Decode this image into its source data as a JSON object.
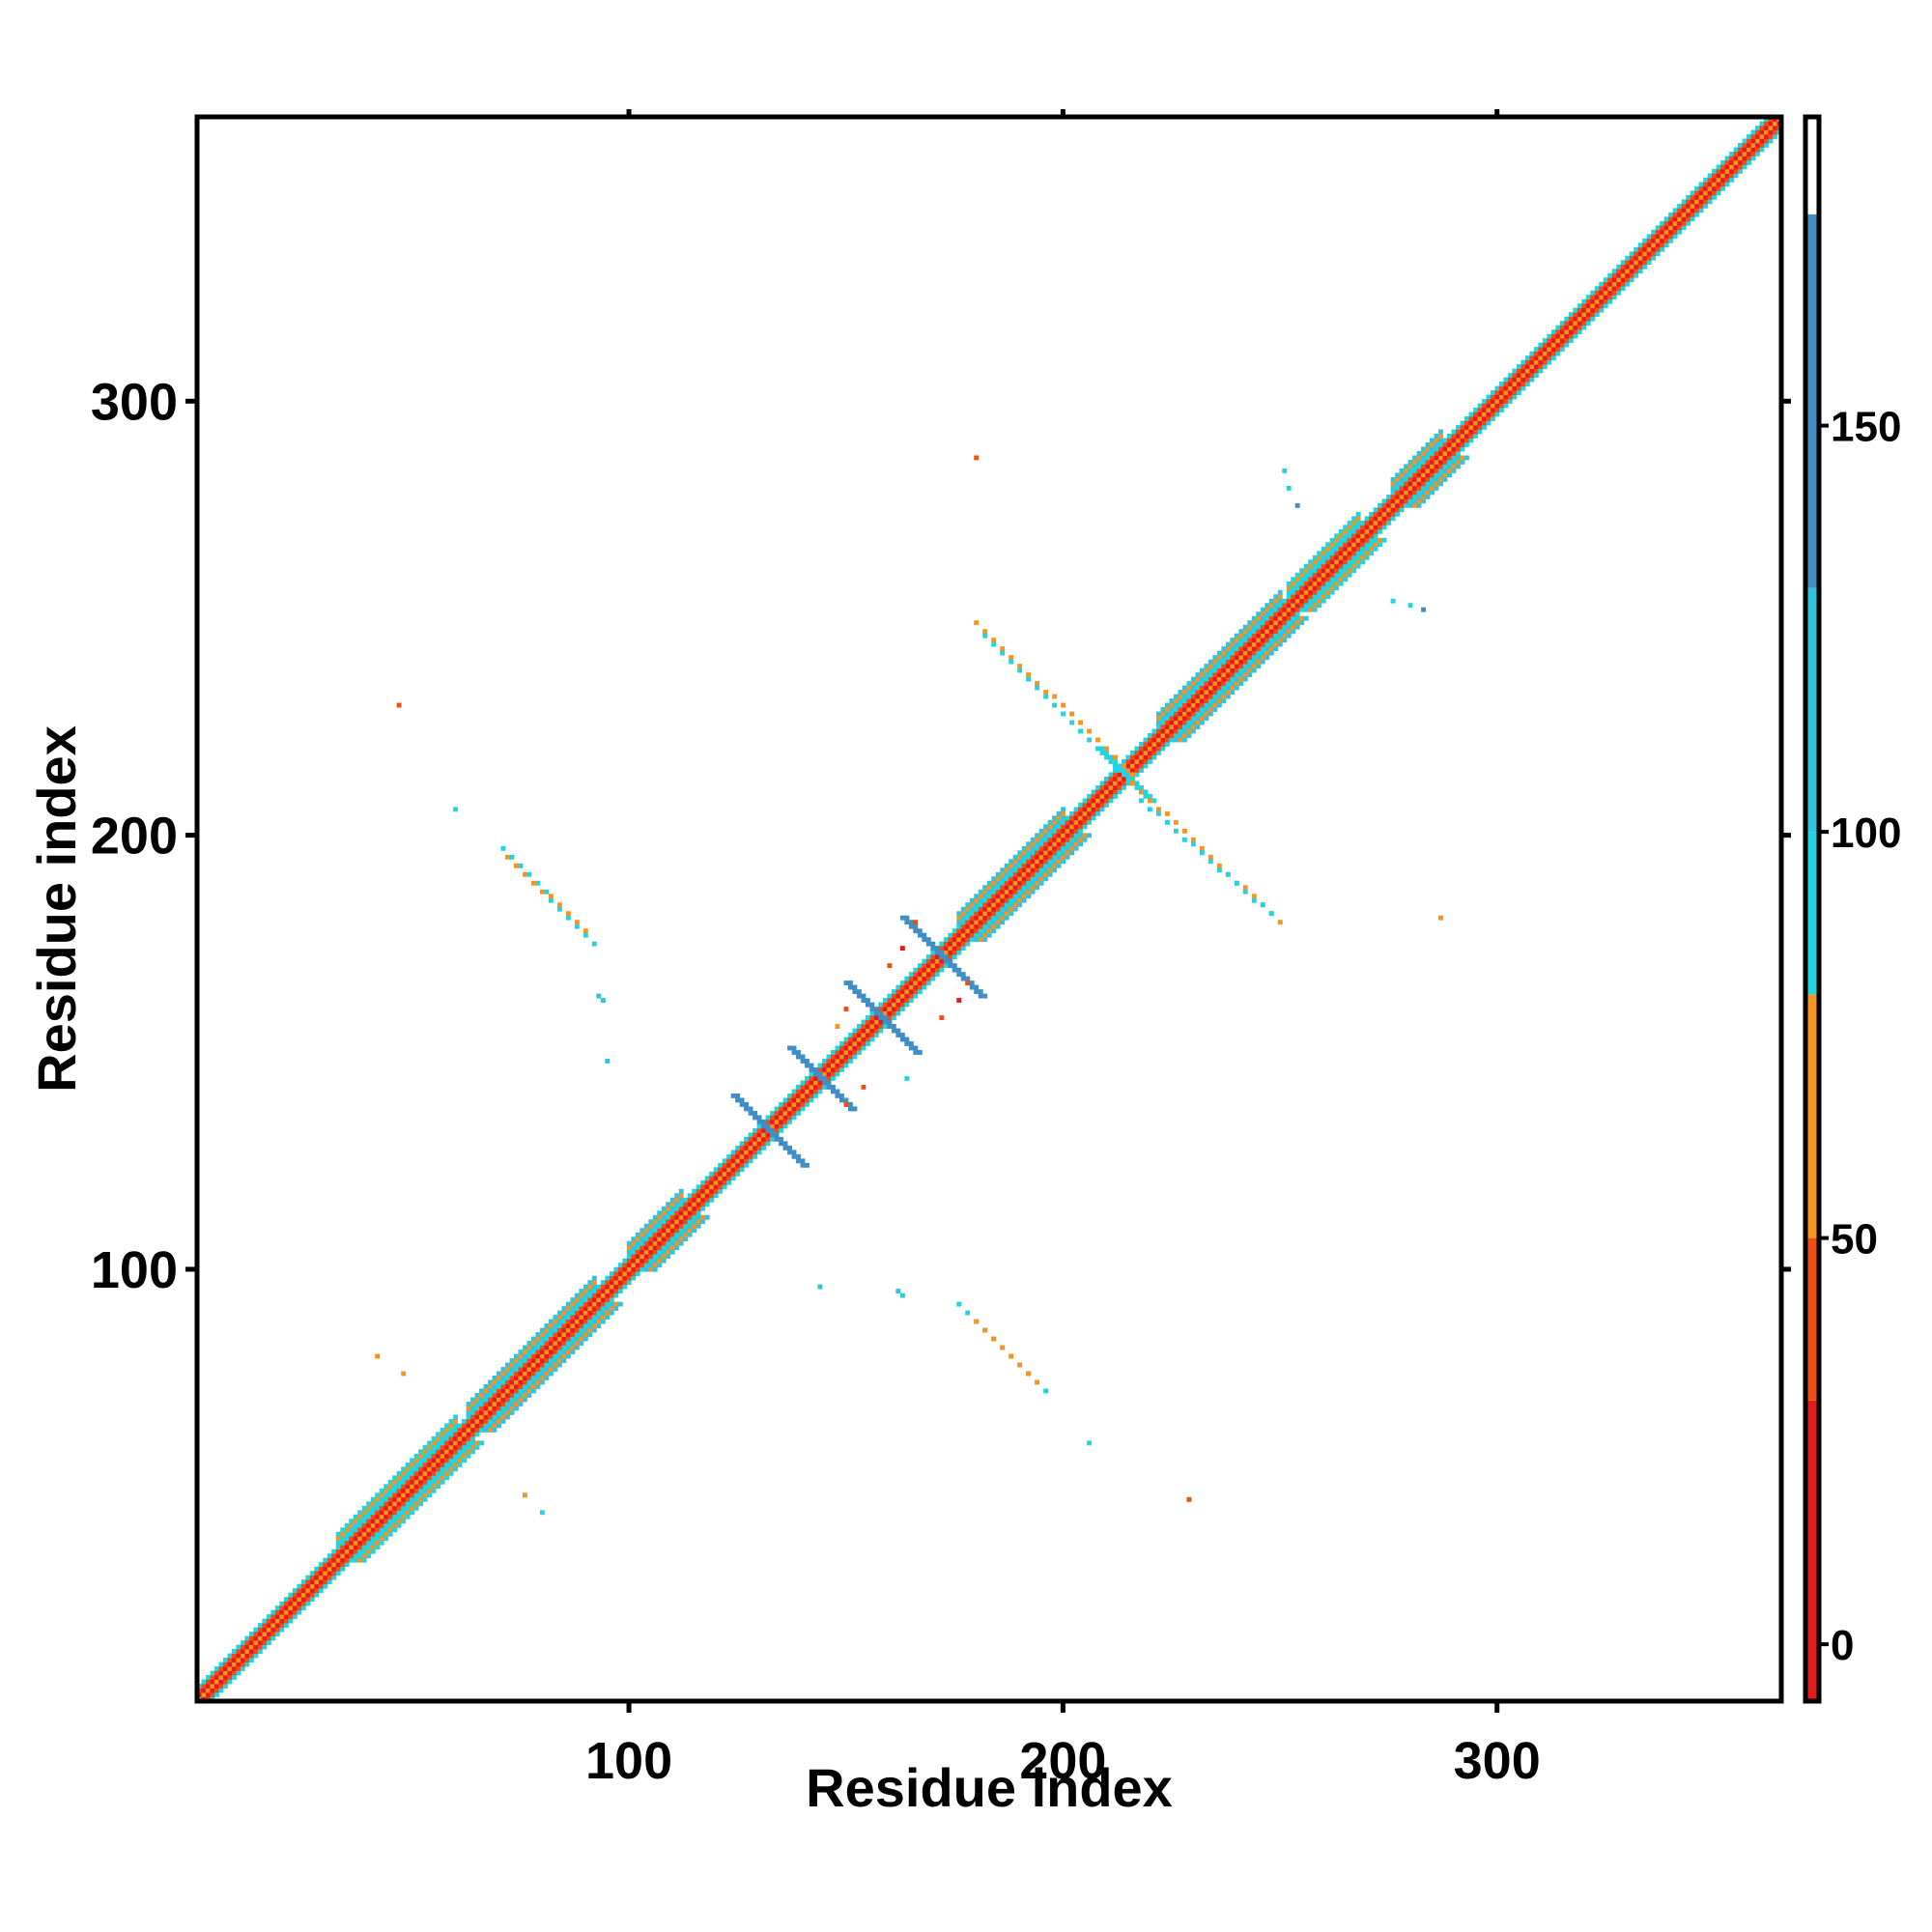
{
  "chart_data": {
    "type": "heatmap",
    "title": "",
    "xlabel": "Residue index",
    "ylabel": "Residue index",
    "xlim": [
      1,
      365
    ],
    "ylim": [
      1,
      365
    ],
    "x_ticks": [
      100,
      200,
      300
    ],
    "y_ticks": [
      100,
      200,
      300
    ],
    "grid": false,
    "symmetric": true,
    "colorbar": {
      "range": [
        -7,
        188
      ],
      "ticks": [
        0,
        50,
        100,
        150
      ],
      "colors": [
        {
          "from": -7,
          "to": 30,
          "color": "#e41a1c"
        },
        {
          "from": 30,
          "to": 50,
          "color": "#f04e12"
        },
        {
          "from": 50,
          "to": 80,
          "color": "#f7931e"
        },
        {
          "from": 80,
          "to": 100,
          "color": "#22d3e0"
        },
        {
          "from": 100,
          "to": 130,
          "color": "#2fc3e0"
        },
        {
          "from": 130,
          "to": 176,
          "color": "#3f8fc6"
        },
        {
          "from": 176,
          "to": 188,
          "color": "#ffffff"
        }
      ]
    },
    "diagonal": {
      "from": 1,
      "to": 365,
      "bands": [
        {
          "offset": 0,
          "color": "#f7931e"
        },
        {
          "offset": 1,
          "color": "#e41a1c"
        },
        {
          "offset": 2,
          "color": "#f04e12"
        },
        {
          "offset": 3,
          "color": "#22d3e0"
        }
      ]
    },
    "helix_segments": [
      {
        "start": 33,
        "end": 60,
        "color": "#22d3e0"
      },
      {
        "start": 63,
        "end": 92,
        "color": "#2fc3e0"
      },
      {
        "start": 100,
        "end": 112,
        "color": "#2fc3e0"
      },
      {
        "start": 176,
        "end": 200,
        "color": "#2fc3e0"
      },
      {
        "start": 222,
        "end": 250,
        "color": "#2fc3e0"
      },
      {
        "start": 252,
        "end": 268,
        "color": "#22d3e0"
      },
      {
        "start": 276,
        "end": 287,
        "color": "#2fc3e0"
      }
    ],
    "cross_patterns": [
      {
        "center": 132,
        "size": 8,
        "color": "#3f8fc6"
      },
      {
        "center": 144,
        "size": 7,
        "color": "#3f8fc6"
      },
      {
        "center": 158,
        "size": 8,
        "color": "#3f8fc6"
      },
      {
        "center": 172,
        "size": 9,
        "color": "#3f8fc6"
      },
      {
        "center": 214,
        "size": 6,
        "color": "#22d3e0"
      }
    ],
    "contact_lines": [
      {
        "x1": 71,
        "y1": 197,
        "x2": 92,
        "y2": 175,
        "color": "#22d3e0"
      },
      {
        "x1": 72,
        "y1": 195,
        "x2": 90,
        "y2": 178,
        "color": "#f7931e"
      },
      {
        "x1": 180,
        "y1": 249,
        "x2": 216,
        "y2": 214,
        "color": "#f7931e"
      },
      {
        "x1": 182,
        "y1": 246,
        "x2": 210,
        "y2": 218,
        "color": "#22d3e0"
      },
      {
        "x1": 214,
        "y1": 214,
        "x2": 250,
        "y2": 180,
        "color": "#f7931e"
      },
      {
        "x1": 218,
        "y1": 208,
        "x2": 248,
        "y2": 182,
        "color": "#22d3e0"
      },
      {
        "x1": 176,
        "y1": 92,
        "x2": 196,
        "y2": 72,
        "color": "#22d3e0"
      },
      {
        "x1": 180,
        "y1": 88,
        "x2": 194,
        "y2": 74,
        "color": "#f7931e"
      }
    ],
    "contact_points": [
      {
        "x": 180,
        "y": 287,
        "color": "#f04e12"
      },
      {
        "x": 251,
        "y": 284,
        "color": "#22d3e0"
      },
      {
        "x": 252,
        "y": 280,
        "color": "#22d3e0"
      },
      {
        "x": 254,
        "y": 276,
        "color": "#3f8fc6"
      },
      {
        "x": 276,
        "y": 254,
        "color": "#22d3e0"
      },
      {
        "x": 280,
        "y": 253,
        "color": "#22d3e0"
      },
      {
        "x": 283,
        "y": 252,
        "color": "#3f8fc6"
      },
      {
        "x": 287,
        "y": 181,
        "color": "#f7931e"
      },
      {
        "x": 47,
        "y": 230,
        "color": "#f04e12"
      },
      {
        "x": 60,
        "y": 206,
        "color": "#22d3e0"
      },
      {
        "x": 93,
        "y": 163,
        "color": "#2fc3e0"
      },
      {
        "x": 94,
        "y": 162,
        "color": "#2fc3e0"
      },
      {
        "x": 95,
        "y": 148,
        "color": "#2fc3e0"
      },
      {
        "x": 144,
        "y": 96,
        "color": "#2fc3e0"
      },
      {
        "x": 162,
        "y": 95,
        "color": "#2fc3e0"
      },
      {
        "x": 163,
        "y": 94,
        "color": "#2fc3e0"
      },
      {
        "x": 42,
        "y": 80,
        "color": "#f7931e"
      },
      {
        "x": 48,
        "y": 76,
        "color": "#f7931e"
      },
      {
        "x": 76,
        "y": 48,
        "color": "#f7931e"
      },
      {
        "x": 80,
        "y": 44,
        "color": "#22d3e0"
      },
      {
        "x": 206,
        "y": 60,
        "color": "#22d3e0"
      },
      {
        "x": 229,
        "y": 47,
        "color": "#f04e12"
      },
      {
        "x": 166,
        "y": 180,
        "color": "#f04e12"
      },
      {
        "x": 163,
        "y": 174,
        "color": "#e41a1c"
      },
      {
        "x": 160,
        "y": 170,
        "color": "#f04e12"
      },
      {
        "x": 150,
        "y": 160,
        "color": "#f04e12"
      },
      {
        "x": 148,
        "y": 156,
        "color": "#f7931e"
      },
      {
        "x": 178,
        "y": 166,
        "color": "#f04e12"
      },
      {
        "x": 176,
        "y": 162,
        "color": "#e41a1c"
      },
      {
        "x": 172,
        "y": 158,
        "color": "#f04e12"
      },
      {
        "x": 154,
        "y": 142,
        "color": "#f04e12"
      },
      {
        "x": 150,
        "y": 138,
        "color": "#f04e12"
      },
      {
        "x": 164,
        "y": 144,
        "color": "#22d3e0"
      }
    ]
  }
}
